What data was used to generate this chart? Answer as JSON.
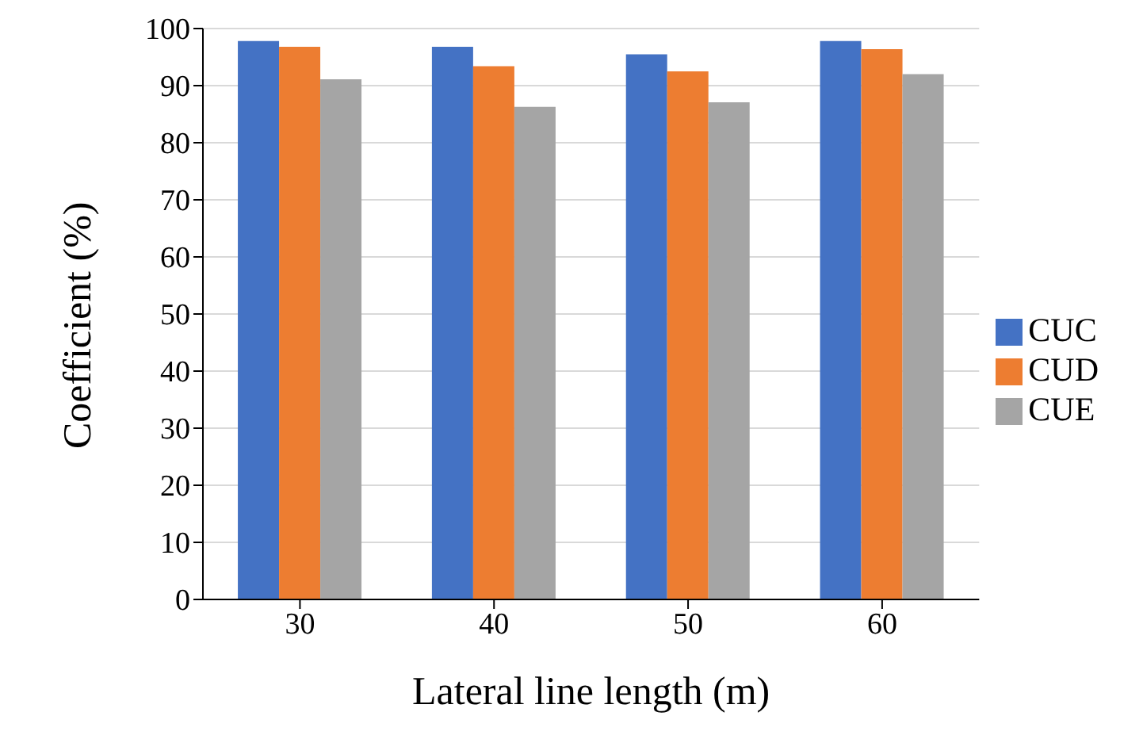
{
  "chart_data": {
    "type": "bar",
    "xlabel": "Lateral line length (m)",
    "ylabel": "Coefficient (%)",
    "categories": [
      "30",
      "40",
      "50",
      "60"
    ],
    "series": [
      {
        "name": "CUC",
        "color": "#4472c4",
        "values": [
          97.8,
          96.8,
          95.5,
          97.8
        ]
      },
      {
        "name": "CUD",
        "color": "#ed7d31",
        "values": [
          96.8,
          93.4,
          92.5,
          96.4
        ]
      },
      {
        "name": "CUE",
        "color": "#a5a5a5",
        "values": [
          91.1,
          86.3,
          87.1,
          92.0
        ]
      }
    ],
    "ylim": [
      0,
      100
    ],
    "yticks": [
      0,
      10,
      20,
      30,
      40,
      50,
      60,
      70,
      80,
      90,
      100
    ],
    "grid": "y",
    "legend": "right"
  }
}
